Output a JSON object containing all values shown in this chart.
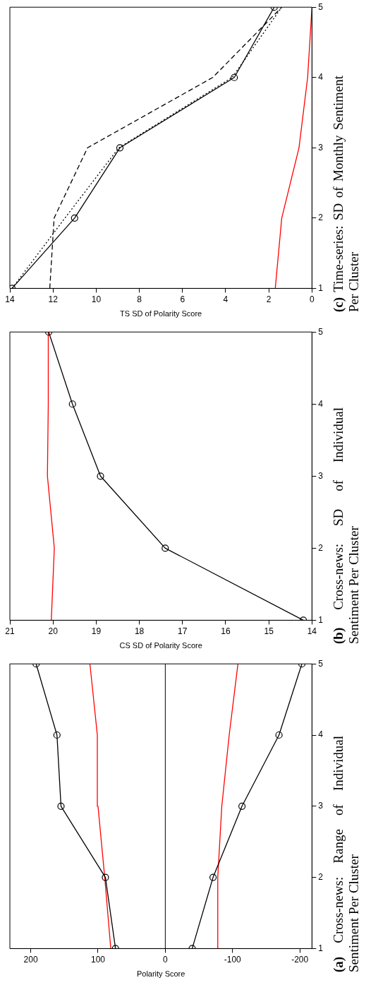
{
  "chart_data": [
    {
      "type": "line",
      "annotations": [
        "(c) Time-series: SD of Monthly Sentiment Per Cluster"
      ],
      "xlabel": "TS SD of Polarity Score",
      "xlim": [
        14,
        0
      ],
      "xticks": [
        14,
        12,
        10,
        8,
        6,
        4,
        2,
        0
      ],
      "ylim": [
        1,
        5
      ],
      "yticks": [
        1,
        2,
        3,
        4,
        5
      ],
      "grid": false,
      "legend": false,
      "series": [
        {
          "color": "#000000",
          "marker": "circle",
          "line_style": "solid",
          "x": [
            13.9,
            11.0,
            8.9,
            3.6,
            1.75
          ],
          "values": [
            1,
            2,
            3,
            4,
            5
          ]
        },
        {
          "color": "#000000",
          "marker": "none",
          "line_style": "dashed",
          "x": [
            12.15,
            11.95,
            10.4,
            4.6,
            1.4
          ],
          "values": [
            1,
            2,
            3,
            4,
            5
          ]
        },
        {
          "color": "#000000",
          "marker": "none",
          "line_style": "dotted",
          "x": [
            13.9,
            11.45,
            8.95,
            3.7,
            1.4
          ],
          "values": [
            1,
            2,
            3,
            4,
            5
          ]
        },
        {
          "color": "#ff0000",
          "marker": "none",
          "line_style": "solid",
          "x": [
            1.7,
            1.4,
            0.6,
            0.2,
            0.0
          ],
          "values": [
            1,
            2,
            3,
            4,
            5
          ]
        }
      ]
    },
    {
      "type": "line",
      "annotations": [
        "(b) Cross-news: SD of Individual Sentiment Per Cluster"
      ],
      "xlabel": "CS SD of Polarity Score",
      "xlim": [
        21,
        14
      ],
      "xticks": [
        21,
        20,
        19,
        18,
        17,
        16,
        15,
        14
      ],
      "ylim": [
        1,
        5
      ],
      "yticks": [
        1,
        2,
        3,
        4,
        5
      ],
      "grid": false,
      "legend": false,
      "series": [
        {
          "color": "#000000",
          "marker": "circle",
          "line_style": "solid",
          "x": [
            14.2,
            17.4,
            18.9,
            19.55,
            20.1
          ],
          "values": [
            1,
            2,
            3,
            4,
            5
          ]
        },
        {
          "color": "#ff0000",
          "marker": "none",
          "line_style": "solid",
          "x": [
            20.04,
            19.97,
            20.13,
            20.11,
            20.11
          ],
          "values": [
            1,
            2,
            3,
            4,
            5
          ]
        }
      ]
    },
    {
      "type": "line",
      "annotations": [
        "(a) Cross-news: Range of Individual Sentiment Per Cluster"
      ],
      "xlabel": "Polarity Score",
      "xlim": [
        231,
        -218
      ],
      "xticks": [
        200,
        100,
        0,
        -100,
        -200
      ],
      "ylim": [
        1,
        5
      ],
      "yticks": [
        1,
        2,
        3,
        4,
        5
      ],
      "grid": false,
      "legend": false,
      "ref_lines": [
        {
          "axis": "x",
          "value": 0,
          "color": "#000000"
        }
      ],
      "series": [
        {
          "color": "#000000",
          "marker": "circle",
          "line_style": "solid",
          "x": [
            74,
            89,
            155,
            161,
            192
          ],
          "values": [
            1,
            2,
            3,
            4,
            5
          ]
        },
        {
          "color": "#ff0000",
          "marker": "none",
          "line_style": "solid",
          "x": [
            81,
            90,
            100,
            101,
            112
          ],
          "values": [
            1,
            2,
            3,
            4,
            5
          ]
        },
        {
          "color": "#000000",
          "marker": "circle",
          "line_style": "solid",
          "x": [
            -40,
            -71,
            -114,
            -169,
            -203
          ],
          "values": [
            1,
            2,
            3,
            4,
            5
          ]
        },
        {
          "color": "#ff0000",
          "marker": "none",
          "line_style": "solid",
          "x": [
            -78,
            -78,
            -84,
            -95,
            -108
          ],
          "values": [
            1,
            2,
            3,
            4,
            5
          ]
        }
      ]
    }
  ]
}
